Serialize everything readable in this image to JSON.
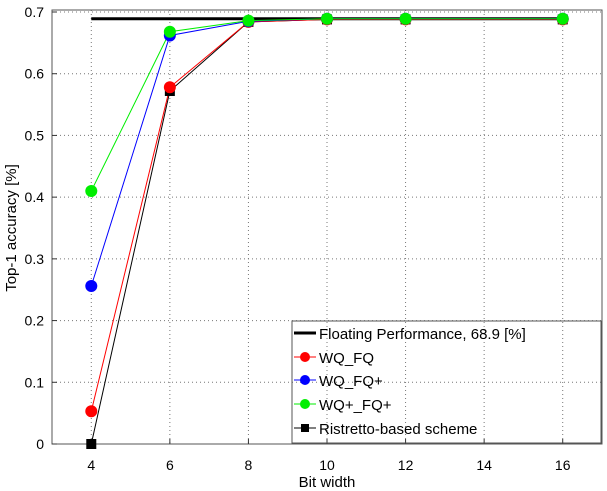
{
  "chart_data": {
    "type": "line",
    "title": "",
    "xlabel": "Bit width",
    "ylabel": "Top-1 accuracy [%]",
    "x": [
      4,
      6,
      8,
      10,
      12,
      16
    ],
    "xlim": [
      3,
      17
    ],
    "ylim": [
      0,
      0.7
    ],
    "xticks": [
      4,
      6,
      8,
      10,
      12,
      14,
      16
    ],
    "yticks": [
      0,
      0.1,
      0.2,
      0.3,
      0.4,
      0.5,
      0.6,
      0.7
    ],
    "xtick_labels": [
      "4",
      "6",
      "8",
      "10",
      "12",
      "14",
      "16"
    ],
    "ytick_labels": [
      "0",
      "0.1",
      "0.2",
      "0.3",
      "0.4",
      "0.5",
      "0.6",
      "0.7"
    ],
    "grid": true,
    "legend_position": "lower right",
    "reference_line": {
      "name": "Floating Performance, 68.9 [%]",
      "value": 0.689,
      "x_range": [
        4,
        16
      ],
      "color": "#000000"
    },
    "series": [
      {
        "name": "WQ_FQ",
        "color": "#ff0000",
        "marker": "circle",
        "values": [
          0.053,
          0.578,
          0.684,
          0.688,
          0.688,
          0.688
        ]
      },
      {
        "name": "WQ_FQ+",
        "color": "#0000ff",
        "marker": "circle",
        "values": [
          0.256,
          0.662,
          0.685,
          0.689,
          0.689,
          0.689
        ]
      },
      {
        "name": "WQ+_FQ+",
        "color": "#00ee00",
        "marker": "circle",
        "values": [
          0.41,
          0.668,
          0.686,
          0.689,
          0.689,
          0.689
        ]
      },
      {
        "name": "Ristretto-based scheme",
        "color": "#000000",
        "marker": "square",
        "values": [
          0.0,
          0.572,
          0.684,
          0.688,
          0.688,
          0.688
        ]
      }
    ]
  }
}
